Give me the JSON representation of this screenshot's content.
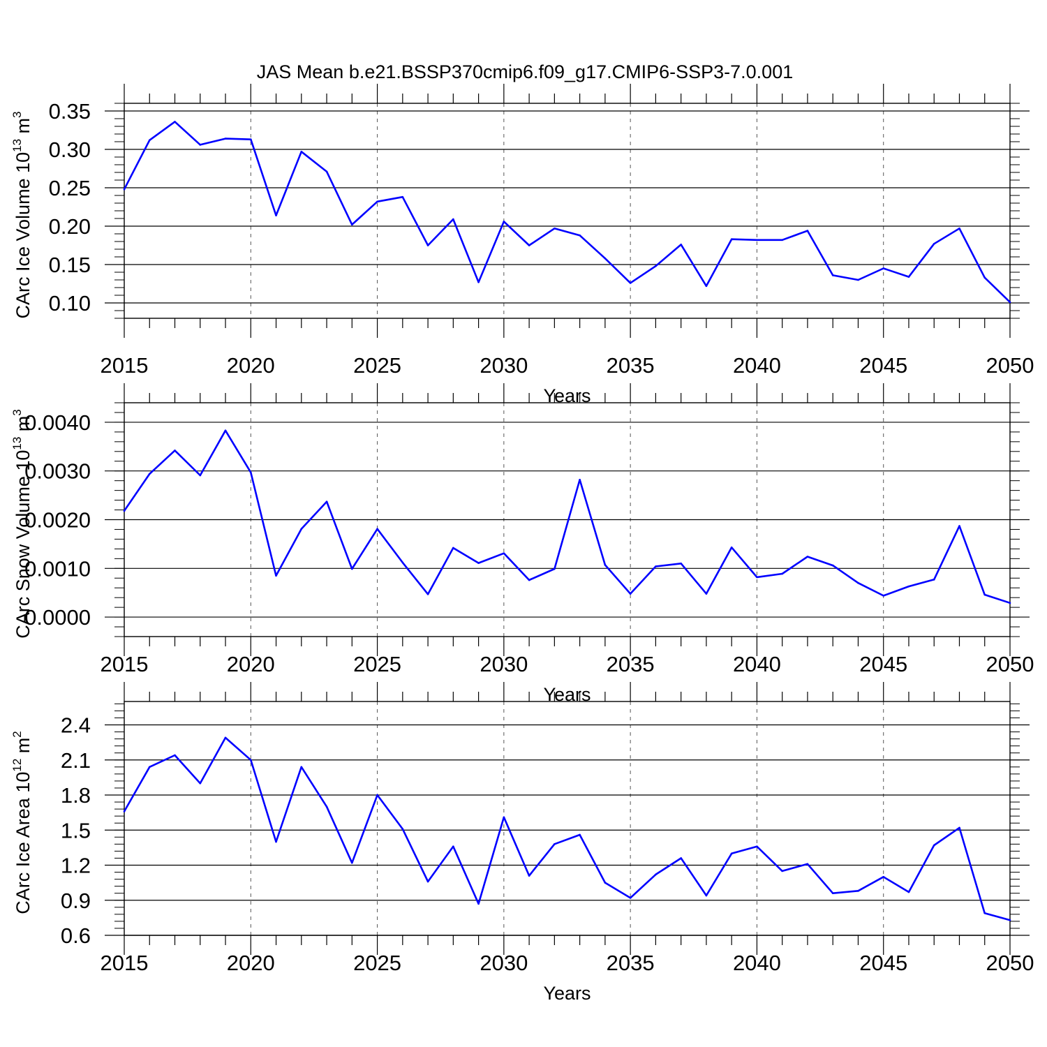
{
  "title": "JAS Mean b.e21.BSSP370cmip6.f09_g17.CMIP6-SSP3-7.0.001",
  "colors": {
    "line": "#0000ff",
    "axis": "#000000",
    "grid": "#555555"
  },
  "chart_data": [
    {
      "type": "line",
      "name": "ice-volume",
      "ylabel_text": "CArc Ice Volume 10",
      "ylabel_exp": "13",
      "ylabel_unit": " m",
      "ylabel_unit_exp": "3",
      "xlabel": "Years",
      "xlim": [
        2015,
        2050
      ],
      "ylim": [
        0.08,
        0.36
      ],
      "yticks": [
        0.1,
        0.15,
        0.2,
        0.25,
        0.3,
        0.35
      ],
      "ytick_labels": [
        "0.10",
        "0.15",
        "0.20",
        "0.25",
        "0.30",
        "0.35"
      ],
      "ytick_minor": 0.01,
      "xticks": [
        2015,
        2020,
        2025,
        2030,
        2035,
        2040,
        2045,
        2050
      ],
      "xtick_labels": [
        "2015",
        "2020",
        "2025",
        "2030",
        "2035",
        "2040",
        "2045",
        "2050"
      ],
      "x": [
        2015,
        2016,
        2017,
        2018,
        2019,
        2020,
        2021,
        2022,
        2023,
        2024,
        2025,
        2026,
        2027,
        2028,
        2029,
        2030,
        2031,
        2032,
        2033,
        2034,
        2035,
        2036,
        2037,
        2038,
        2039,
        2040,
        2041,
        2042,
        2043,
        2044,
        2045,
        2046,
        2047,
        2048,
        2049,
        2050
      ],
      "y": [
        0.248,
        0.312,
        0.336,
        0.306,
        0.314,
        0.313,
        0.214,
        0.297,
        0.271,
        0.202,
        0.232,
        0.238,
        0.175,
        0.209,
        0.127,
        0.206,
        0.175,
        0.197,
        0.188,
        0.158,
        0.126,
        0.148,
        0.176,
        0.122,
        0.183,
        0.182,
        0.182,
        0.194,
        0.136,
        0.13,
        0.145,
        0.134,
        0.177,
        0.197,
        0.133,
        0.101
      ]
    },
    {
      "type": "line",
      "name": "snow-volume",
      "ylabel_text": "CArc Snow Volume 10",
      "ylabel_exp": "13",
      "ylabel_unit": " m",
      "ylabel_unit_exp": "3",
      "xlabel": "Years",
      "xlim": [
        2015,
        2050
      ],
      "ylim": [
        -0.0004,
        0.0044
      ],
      "yticks": [
        0.0,
        0.001,
        0.002,
        0.003,
        0.004
      ],
      "ytick_labels": [
        "0.0000",
        "0.0010",
        "0.0020",
        "0.0030",
        "0.0040"
      ],
      "ytick_minor": 0.0002,
      "xticks": [
        2015,
        2020,
        2025,
        2030,
        2035,
        2040,
        2045,
        2050
      ],
      "xtick_labels": [
        "2015",
        "2020",
        "2025",
        "2030",
        "2035",
        "2040",
        "2045",
        "2050"
      ],
      "x": [
        2015,
        2016,
        2017,
        2018,
        2019,
        2020,
        2021,
        2022,
        2023,
        2024,
        2025,
        2026,
        2027,
        2028,
        2029,
        2030,
        2031,
        2032,
        2033,
        2034,
        2035,
        2036,
        2037,
        2038,
        2039,
        2040,
        2041,
        2042,
        2043,
        2044,
        2045,
        2046,
        2047,
        2048,
        2049,
        2050
      ],
      "y": [
        0.00218,
        0.00294,
        0.00342,
        0.00291,
        0.00383,
        0.00297,
        0.00085,
        0.00181,
        0.00237,
        0.00099,
        0.00181,
        0.00112,
        0.00047,
        0.00142,
        0.00111,
        0.00131,
        0.00076,
        0.00099,
        0.00282,
        0.00107,
        0.00048,
        0.00104,
        0.0011,
        0.00048,
        0.00143,
        0.00082,
        0.00089,
        0.00124,
        0.00106,
        0.0007,
        0.00044,
        0.00063,
        0.00077,
        0.00187,
        0.00046,
        0.00029
      ]
    },
    {
      "type": "line",
      "name": "ice-area",
      "ylabel_text": "CArc Ice Area 10",
      "ylabel_exp": "12",
      "ylabel_unit": " m",
      "ylabel_unit_exp": "2",
      "xlabel": "Years",
      "xlim": [
        2015,
        2050
      ],
      "ylim": [
        0.6,
        2.6
      ],
      "yticks": [
        0.6,
        0.9,
        1.2,
        1.5,
        1.8,
        2.1,
        2.4
      ],
      "ytick_labels": [
        "0.6",
        "0.9",
        "1.2",
        "1.5",
        "1.8",
        "2.1",
        "2.4"
      ],
      "ytick_minor": 0.06,
      "xticks": [
        2015,
        2020,
        2025,
        2030,
        2035,
        2040,
        2045,
        2050
      ],
      "xtick_labels": [
        "2015",
        "2020",
        "2025",
        "2030",
        "2035",
        "2040",
        "2045",
        "2050"
      ],
      "x": [
        2015,
        2016,
        2017,
        2018,
        2019,
        2020,
        2021,
        2022,
        2023,
        2024,
        2025,
        2026,
        2027,
        2028,
        2029,
        2030,
        2031,
        2032,
        2033,
        2034,
        2035,
        2036,
        2037,
        2038,
        2039,
        2040,
        2041,
        2042,
        2043,
        2044,
        2045,
        2046,
        2047,
        2048,
        2049,
        2050
      ],
      "y": [
        1.66,
        2.04,
        2.14,
        1.9,
        2.29,
        2.1,
        1.4,
        2.04,
        1.7,
        1.22,
        1.8,
        1.51,
        1.06,
        1.36,
        0.87,
        1.61,
        1.11,
        1.38,
        1.46,
        1.05,
        0.92,
        1.12,
        1.26,
        0.94,
        1.3,
        1.36,
        1.15,
        1.21,
        0.96,
        0.98,
        1.1,
        0.97,
        1.37,
        1.52,
        0.79,
        0.73
      ]
    }
  ]
}
